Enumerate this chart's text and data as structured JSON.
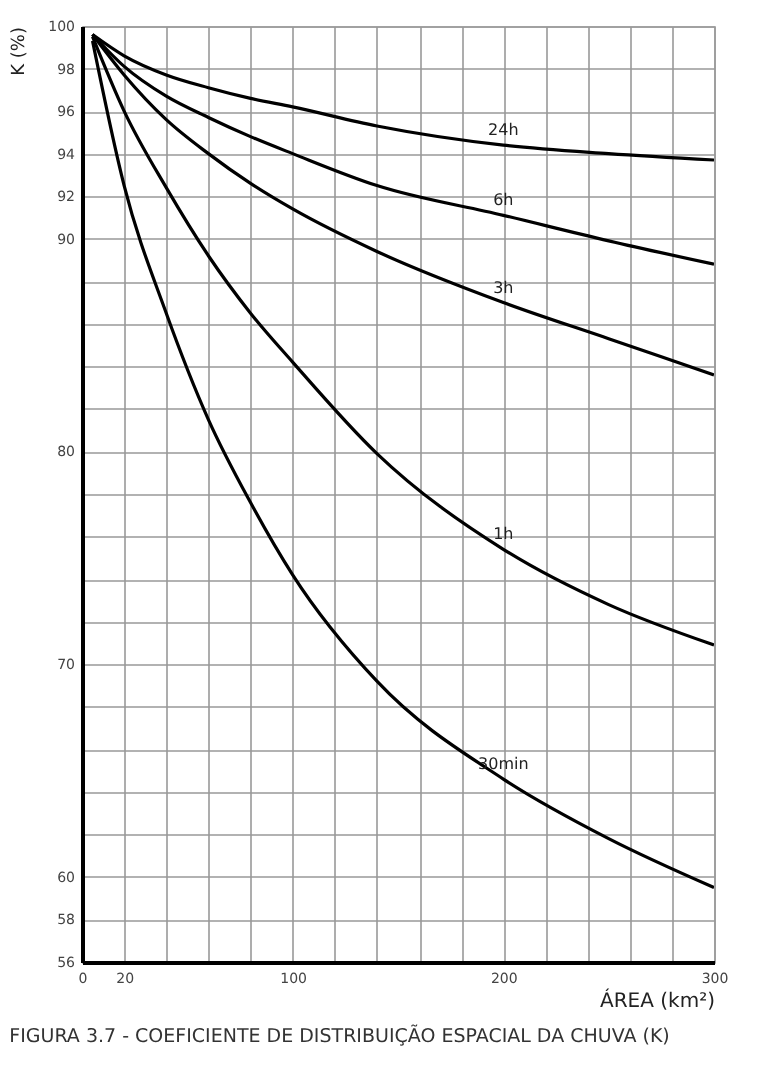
{
  "chart_data": {
    "type": "line",
    "title": "FIGURA 3.7 - COEFICIENTE DE DISTRIBUIÇÃO ESPACIAL DA CHUVA (K)",
    "xlabel": "ÁREA (km²)",
    "ylabel": "K (%)",
    "x": [
      5,
      20,
      40,
      60,
      80,
      100,
      140,
      200,
      250,
      300
    ],
    "series": [
      {
        "name": "24h",
        "color": "#000000",
        "values": [
          99.6,
          98.6,
          97.7,
          97.1,
          96.6,
          96.2,
          95.3,
          94.4,
          94.0,
          93.7
        ]
      },
      {
        "name": "6h",
        "color": "#000000",
        "values": [
          99.6,
          98.1,
          96.7,
          95.7,
          94.8,
          94.0,
          92.5,
          91.1,
          89.9,
          88.8
        ]
      },
      {
        "name": "3h",
        "color": "#000000",
        "values": [
          99.6,
          97.7,
          95.6,
          94.0,
          92.6,
          91.4,
          89.4,
          87.0,
          85.3,
          83.6
        ]
      },
      {
        "name": "1h",
        "color": "#000000",
        "values": [
          99.5,
          96.0,
          92.4,
          89.2,
          86.5,
          84.2,
          79.9,
          75.4,
          72.8,
          70.9
        ]
      },
      {
        "name": "30min",
        "color": "#000000",
        "values": [
          99.3,
          92.5,
          86.5,
          81.5,
          77.6,
          74.2,
          69.2,
          64.6,
          61.8,
          59.5
        ]
      }
    ],
    "xlim": [
      0,
      300
    ],
    "ylim": [
      56,
      100
    ],
    "xticks": [
      0,
      20,
      {
        "value": 40,
        "label": null
      },
      {
        "value": 60,
        "label": null
      },
      {
        "value": 80,
        "label": null
      },
      100,
      {
        "value": 120,
        "label": null
      },
      {
        "value": 140,
        "label": null
      },
      {
        "value": 160,
        "label": null
      },
      {
        "value": 180,
        "label": null
      },
      200,
      {
        "value": 220,
        "label": null
      },
      {
        "value": 240,
        "label": null
      },
      {
        "value": 260,
        "label": null
      },
      {
        "value": 280,
        "label": null
      },
      300
    ],
    "yticks": [
      56,
      58,
      60,
      {
        "value": 62,
        "label": null
      },
      {
        "value": 64,
        "label": null
      },
      {
        "value": 66,
        "label": null
      },
      {
        "value": 68,
        "label": null
      },
      70,
      {
        "value": 72,
        "label": null
      },
      {
        "value": 74,
        "label": null
      },
      {
        "value": 76,
        "label": null
      },
      {
        "value": 78,
        "label": null
      },
      80,
      {
        "value": 82,
        "label": null
      },
      {
        "value": 84,
        "label": null
      },
      {
        "value": 86,
        "label": null
      },
      {
        "value": 88,
        "label": null
      },
      90,
      92,
      94,
      96,
      98,
      100
    ],
    "grid": true,
    "line_style": "solid"
  }
}
